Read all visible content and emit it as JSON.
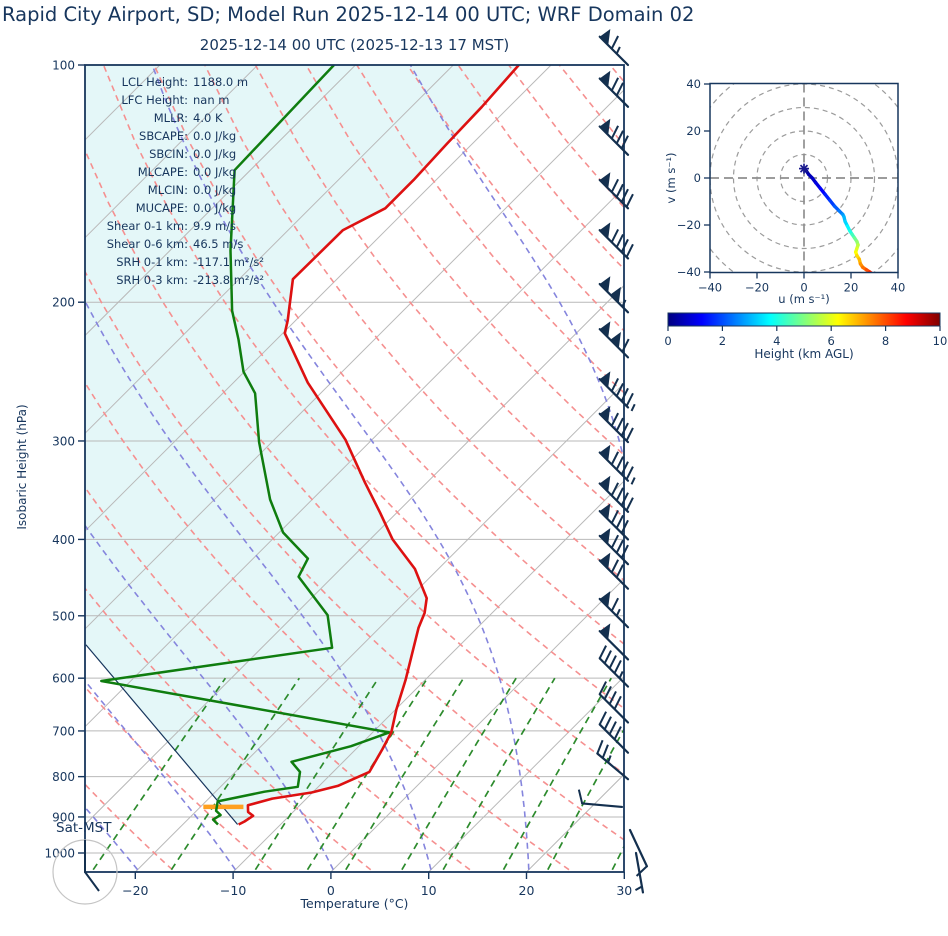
{
  "title": "Rapid City Airport, SD; Model Run 2025-12-14 00 UTC; WRF Domain 02",
  "subtitle": "2025-12-14 00 UTC  (2025-12-13 17 MST)",
  "colors": {
    "text": "#17365d",
    "temperature_line": "#dd1111",
    "dewpoint_line": "#0f7d0f",
    "parcel_line": "#17365d",
    "lcl_marker": "#ffa020",
    "cin_shading": "#e4f7f8",
    "dry_adiabat": "#f59090",
    "moist_adiabat": "#8585dd",
    "mixing_ratio": "#2d8b2d",
    "isotherm": "#b9b9b9",
    "wind_barb": "#14304f",
    "grid_gray": "#9b9b9b"
  },
  "skewt": {
    "ylabel": "Isobaric Height (hPa)",
    "xlabel": "Temperature (°C)",
    "corner_label": "Sat-MST",
    "pressure_ticks": [
      100,
      200,
      300,
      400,
      500,
      600,
      700,
      800,
      900,
      1000
    ],
    "temp_ticks": [
      -20,
      -10,
      0,
      10,
      20,
      30
    ],
    "stats": [
      {
        "label": "LCL Height:",
        "value": "1188.0 m"
      },
      {
        "label": "LFC Height:",
        "value": "nan m"
      },
      {
        "label": "MLLR:",
        "value": "4.0 K"
      },
      {
        "label": "SBCAPE:",
        "value": "0.0 J/kg"
      },
      {
        "label": "SBCIN:",
        "value": "0.0 J/kg"
      },
      {
        "label": "MLCAPE:",
        "value": "0.0 J/kg"
      },
      {
        "label": "MLCIN:",
        "value": "0.0 J/kg"
      },
      {
        "label": "MUCAPE:",
        "value": "0.0 J/kg"
      },
      {
        "label": "Shear 0-1 km:",
        "value": "9.9 m/s"
      },
      {
        "label": "Shear 0-6 km:",
        "value": "46.5 m/s"
      },
      {
        "label": "SRH 0-1 km:",
        "value": "-117.1 m²/s²"
      },
      {
        "label": "SRH 0-3 km:",
        "value": "-213.8 m²/s²"
      }
    ]
  },
  "hodograph": {
    "xlabel": "u (m s⁻¹)",
    "ylabel": "v (m s⁻¹)",
    "u_ticks": [
      -40,
      -20,
      0,
      20,
      40
    ],
    "v_ticks": [
      -40,
      -20,
      0,
      20,
      40
    ],
    "ring_radii": [
      10,
      20,
      30,
      40,
      50
    ],
    "colorbar": {
      "label": "Height (km AGL)",
      "ticks": [
        0,
        2,
        4,
        6,
        8,
        10
      ],
      "range": [
        0,
        10
      ],
      "jet_stops": [
        [
          0,
          "#000080"
        ],
        [
          0.125,
          "#0000ff"
        ],
        [
          0.375,
          "#00ffff"
        ],
        [
          0.625,
          "#ffff00"
        ],
        [
          0.875,
          "#ff0000"
        ],
        [
          1,
          "#800000"
        ]
      ]
    }
  },
  "chart_data": [
    {
      "type": "line",
      "name": "skewt_sounding",
      "title": "2025-12-14 00 UTC  (2025-12-13 17 MST)",
      "xlabel": "Temperature (°C)",
      "ylabel": "Isobaric Height (hPa)",
      "xlim_surface_degC": [
        -25,
        30
      ],
      "ylim_hPa": [
        100,
        1050
      ],
      "grid": true,
      "shaded_region": "CIN area between parcel path and temperature profile (light cyan)",
      "background": {
        "isotherms_degC": {
          "from": -110,
          "to": 30,
          "step": 10
        },
        "dry_adiabats_theta_degC": {
          "from": -30,
          "to": 160,
          "step": 10
        },
        "moist_adiabats_start_degC_at_1050": [
          -60,
          -50,
          -40,
          -30,
          -20,
          -10,
          0,
          10,
          20,
          30,
          40,
          50
        ],
        "mixing_ratio_g_per_kg": [
          0.5,
          1,
          2,
          3,
          4,
          6,
          8,
          12,
          16,
          24,
          32
        ],
        "mixing_ratio_max_height_hPa": 600
      },
      "series": [
        {
          "name": "temperature_degC",
          "points": [
            [
              100,
              -63.3
            ],
            [
              113,
              -62.8
            ],
            [
              126,
              -62.6
            ],
            [
              140,
              -62.3
            ],
            [
              152,
              -62.3
            ],
            [
              162,
              -64.4
            ],
            [
              187,
              -64.5
            ],
            [
              211,
              -60.8
            ],
            [
              219,
              -59.8
            ],
            [
              253,
              -52.4
            ],
            [
              299,
              -42.7
            ],
            [
              339,
              -36.3
            ],
            [
              370,
              -31.7
            ],
            [
              400,
              -27.7
            ],
            [
              436,
              -22.4
            ],
            [
              475,
              -18.2
            ],
            [
              496,
              -16.9
            ],
            [
              518,
              -16.0
            ],
            [
              603,
              -12.0
            ],
            [
              658,
              -9.9
            ],
            [
              703,
              -8.1
            ],
            [
              738,
              -7.3
            ],
            [
              789,
              -6.3
            ],
            [
              822,
              -8.1
            ],
            [
              838,
              -10.1
            ],
            [
              853,
              -13.5
            ],
            [
              870,
              -15.3
            ],
            [
              887,
              -14.6
            ],
            [
              897,
              -13.7
            ],
            [
              912,
              -14.0
            ],
            [
              920,
              -14.3
            ]
          ]
        },
        {
          "name": "dewpoint_degC",
          "points": [
            [
              100,
              -82.2
            ],
            [
              136,
              -81.6
            ],
            [
              172,
              -73.8
            ],
            [
              205,
              -67.5
            ],
            [
              223,
              -63.9
            ],
            [
              245,
              -60.1
            ],
            [
              261,
              -56.7
            ],
            [
              301,
              -51.3
            ],
            [
              356,
              -44.3
            ],
            [
              392,
              -39.6
            ],
            [
              423,
              -34.4
            ],
            [
              446,
              -33.5
            ],
            [
              499,
              -26.6
            ],
            [
              549,
              -22.8
            ],
            [
              605,
              -43.0
            ],
            [
              703,
              -8.3
            ],
            [
              732,
              -10.8
            ],
            [
              766,
              -15.3
            ],
            [
              789,
              -13.4
            ],
            [
              824,
              -12.1
            ],
            [
              836,
              -15.0
            ],
            [
              860,
              -18.8
            ],
            [
              884,
              -18.0
            ],
            [
              895,
              -17.1
            ],
            [
              907,
              -17.4
            ],
            [
              920,
              -16.4
            ]
          ]
        },
        {
          "name": "parcel_path_degC",
          "points": [
            [
              920,
              -14.4
            ],
            [
              544,
              -48.3
            ]
          ]
        }
      ],
      "lcl_marker": {
        "pressure_hPa": 874,
        "t_from": -19.7,
        "t_to": -15.6
      },
      "wind_barbs": [
        {
          "p": 100,
          "flags": 1,
          "full": 1,
          "half": 1,
          "angle": -45,
          "dx": 0
        },
        {
          "p": 113,
          "flags": 1,
          "full": 2,
          "half": 0,
          "angle": -45,
          "dx": 0
        },
        {
          "p": 130,
          "flags": 1,
          "full": 3,
          "half": 0,
          "angle": -45,
          "dx": 0
        },
        {
          "p": 152,
          "flags": 1,
          "full": 4,
          "half": 0,
          "angle": -45,
          "dx": 0
        },
        {
          "p": 176,
          "flags": 1,
          "full": 4,
          "half": 0,
          "angle": -45,
          "dx": 0
        },
        {
          "p": 206,
          "flags": 2,
          "full": 0,
          "half": 1,
          "angle": -45,
          "dx": 0
        },
        {
          "p": 235,
          "flags": 2,
          "full": 1,
          "half": 0,
          "angle": -45,
          "dx": 0
        },
        {
          "p": 272,
          "flags": 1,
          "full": 4,
          "half": 1,
          "angle": -45,
          "dx": 0
        },
        {
          "p": 301,
          "flags": 1,
          "full": 4,
          "half": 0,
          "angle": -45,
          "dx": 0
        },
        {
          "p": 337,
          "flags": 1,
          "full": 4,
          "half": 1,
          "angle": -45,
          "dx": 0
        },
        {
          "p": 369,
          "flags": 1,
          "full": 4,
          "half": 0,
          "angle": -45,
          "dx": 0
        },
        {
          "p": 400,
          "flags": 1,
          "full": 3,
          "half": 0,
          "angle": -45,
          "dx": 0
        },
        {
          "p": 430,
          "flags": 1,
          "full": 3,
          "half": 0,
          "angle": -45,
          "dx": 0
        },
        {
          "p": 462,
          "flags": 1,
          "full": 2,
          "half": 0,
          "angle": -45,
          "dx": 0
        },
        {
          "p": 517,
          "flags": 1,
          "full": 1,
          "half": 1,
          "angle": -45,
          "dx": 0
        },
        {
          "p": 568,
          "flags": 1,
          "full": 0,
          "half": 0,
          "angle": -45,
          "dx": 0
        },
        {
          "p": 615,
          "flags": 0,
          "full": 4,
          "half": 1,
          "angle": -45,
          "dx": 0
        },
        {
          "p": 683,
          "flags": 0,
          "full": 4,
          "half": 0,
          "angle": -45,
          "dx": 0
        },
        {
          "p": 746,
          "flags": 0,
          "full": 4,
          "half": 0,
          "angle": -45,
          "dx": 0
        },
        {
          "p": 806,
          "flags": 0,
          "full": 2,
          "half": 1,
          "angle": -50,
          "dx": 0
        },
        {
          "p": 874,
          "flags": 0,
          "full": 1,
          "half": 0,
          "angle": -85,
          "dx": -6
        },
        {
          "p": 935,
          "flags": 0,
          "full": 1,
          "half": 0,
          "angle": 155,
          "dx": 2
        },
        {
          "p": 1000,
          "flags": 0,
          "full": 0,
          "half": 1,
          "angle": 170,
          "dx": 8
        }
      ]
    },
    {
      "type": "line",
      "name": "hodograph",
      "xlabel": "u (m s⁻¹)",
      "ylabel": "v (m s⁻¹)",
      "xlim": [
        -40,
        40
      ],
      "ylim": [
        -40,
        40
      ],
      "legend_position": "colorbar below, Height (km AGL) 0-10, jet colormap",
      "trace_u_v_heightkm": [
        [
          0,
          4,
          0
        ],
        [
          0.5,
          3.5,
          0.1
        ],
        [
          1,
          3,
          0.25
        ],
        [
          2,
          1.5,
          0.4
        ],
        [
          3.5,
          0,
          0.6
        ],
        [
          5,
          -2,
          0.8
        ],
        [
          7,
          -4.5,
          1.1
        ],
        [
          9,
          -7,
          1.4
        ],
        [
          11,
          -9.5,
          1.7
        ],
        [
          13,
          -12,
          2.0
        ],
        [
          15,
          -14,
          2.3
        ],
        [
          16.5,
          -15.5,
          2.6
        ],
        [
          17,
          -16.5,
          2.9
        ],
        [
          17.5,
          -18.5,
          3.2
        ],
        [
          18.5,
          -20.5,
          3.5
        ],
        [
          19.5,
          -22.5,
          3.9
        ],
        [
          20.5,
          -24,
          4.2
        ],
        [
          21.5,
          -25.5,
          4.6
        ],
        [
          22.5,
          -27,
          5.0
        ],
        [
          23,
          -28.5,
          5.4
        ],
        [
          22.5,
          -30,
          5.8
        ],
        [
          22,
          -31.5,
          6.1
        ],
        [
          22.5,
          -33,
          6.4
        ],
        [
          23.5,
          -34.5,
          6.8
        ],
        [
          24,
          -36.5,
          7.1
        ],
        [
          25,
          -38,
          7.5
        ],
        [
          26.5,
          -39,
          7.8
        ],
        [
          28,
          -40,
          8.2
        ],
        [
          30,
          -41.5,
          8.6
        ]
      ],
      "start_marker_u_v": [
        0,
        4
      ]
    }
  ]
}
